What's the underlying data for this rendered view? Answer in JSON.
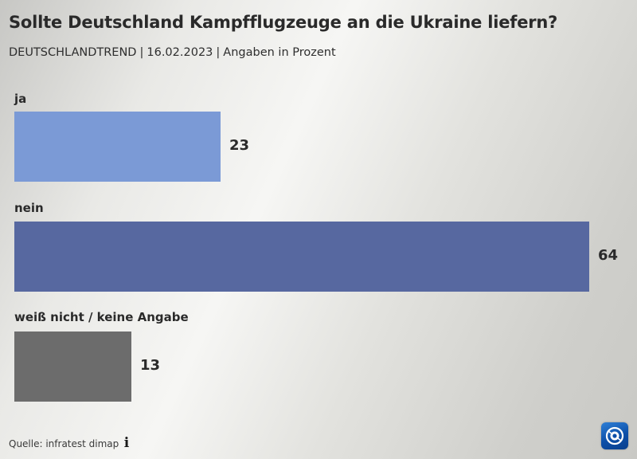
{
  "header": {
    "title": "Sollte Deutschland Kampfflugzeuge an die Ukraine liefern?",
    "subtitle_parts": [
      "DEUTSCHLANDTREND",
      "16.02.2023",
      "Angaben in Prozent"
    ],
    "subtitle_separator": "|"
  },
  "chart_data": {
    "type": "bar",
    "orientation": "horizontal",
    "categories": [
      "ja",
      "nein",
      "weiß nicht / keine Angabe"
    ],
    "values": [
      23,
      64,
      13
    ],
    "colors": [
      "#7b9ad6",
      "#5768a0",
      "#6c6c6c"
    ],
    "unit": "Prozent",
    "xlim": [
      0,
      64
    ],
    "grid": false,
    "legend": "none"
  },
  "footer": {
    "source": "Quelle: infratest dimap",
    "info_icon": "info-icon",
    "logo_icon": "tagesschau-logo-icon"
  }
}
